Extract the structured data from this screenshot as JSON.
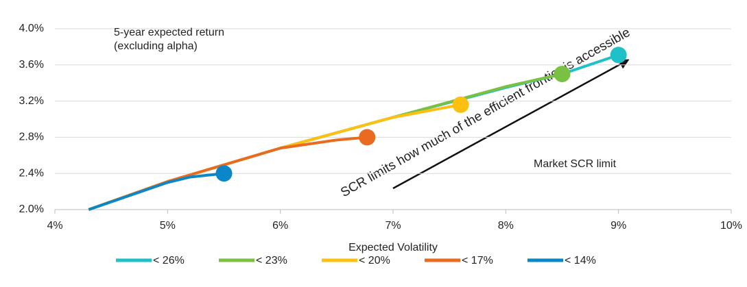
{
  "chart_data": {
    "type": "line",
    "x_label": "Expected Volatility",
    "y_label": "5-year expected return (excluding alpha)",
    "annotations": [
      "SCR limits how much of the efficient frontier is accessible",
      "Market SCR limit"
    ],
    "xlim": [
      4,
      10
    ],
    "xticks": [
      {
        "value": 4,
        "label": "4%"
      },
      {
        "value": 5,
        "label": "5%"
      },
      {
        "value": 6,
        "label": "6%"
      },
      {
        "value": 7,
        "label": "7%"
      },
      {
        "value": 8,
        "label": "8%"
      },
      {
        "value": 9,
        "label": "9%"
      },
      {
        "value": 10,
        "label": "10%"
      }
    ],
    "ylim": [
      2.0,
      4.0
    ],
    "yticks": [
      {
        "value": 2.0,
        "label": "2.0%"
      },
      {
        "value": 2.4,
        "label": "2.4%"
      },
      {
        "value": 2.8,
        "label": "2.8%"
      },
      {
        "value": 3.2,
        "label": "3.2%"
      },
      {
        "value": 3.6,
        "label": "3.6%"
      },
      {
        "value": 4.0,
        "label": "4.0%"
      }
    ],
    "grid": true,
    "legend": "bottom",
    "series": [
      {
        "name": "< 26%",
        "color": "#1fc0c8",
        "x": [
          4.3,
          5.0,
          6.0,
          7.0,
          8.0,
          8.5,
          9.0
        ],
        "values": [
          2.0,
          2.31,
          2.68,
          3.02,
          3.35,
          3.5,
          3.71
        ]
      },
      {
        "name": "< 23%",
        "color": "#7ac143",
        "x": [
          4.3,
          5.0,
          6.0,
          7.0,
          8.0,
          8.5
        ],
        "values": [
          2.0,
          2.31,
          2.68,
          3.02,
          3.36,
          3.5
        ]
      },
      {
        "name": "< 20%",
        "color": "#fdc010",
        "x": [
          4.3,
          5.0,
          6.0,
          7.0,
          7.6
        ],
        "values": [
          2.0,
          2.31,
          2.68,
          3.02,
          3.16
        ]
      },
      {
        "name": "< 17%",
        "color": "#ea6a20",
        "x": [
          4.3,
          5.0,
          6.0,
          6.5,
          6.77
        ],
        "values": [
          2.0,
          2.31,
          2.68,
          2.77,
          2.8
        ]
      },
      {
        "name": "< 14%",
        "color": "#0a87c8",
        "x": [
          4.3,
          5.0,
          5.2,
          5.5
        ],
        "values": [
          2.0,
          2.3,
          2.36,
          2.4
        ]
      }
    ]
  }
}
